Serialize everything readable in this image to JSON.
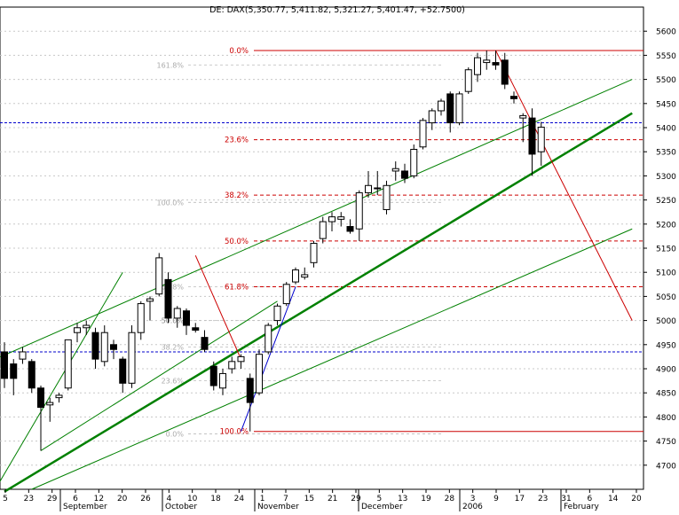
{
  "chart_data": {
    "type": "candlestick",
    "title": "DE: DAX(5,350.77, 5,411.82, 5,321.27, 5,401.47, +52.7500)",
    "ylim": [
      4650,
      5650
    ],
    "y_ticks": [
      4700,
      4750,
      4800,
      4850,
      4900,
      4950,
      5000,
      5050,
      5100,
      5150,
      5200,
      5250,
      5300,
      5350,
      5400,
      5450,
      5500,
      5550,
      5600
    ],
    "day_ticks": [
      "5",
      "23",
      "29",
      "6",
      "12",
      "20",
      "26",
      "4",
      "10",
      "18",
      "24",
      "1",
      "7",
      "15",
      "21",
      "29",
      "5",
      "13",
      "19",
      "28",
      "3",
      "9",
      "17",
      "23",
      "31",
      "6",
      "14",
      "20"
    ],
    "month_labels": [
      "September",
      "October",
      "November",
      "December",
      "2006",
      "February"
    ],
    "candles": [
      {
        "o": 4935,
        "h": 4955,
        "l": 4860,
        "c": 4880
      },
      {
        "o": 4910,
        "h": 4920,
        "l": 4845,
        "c": 4880
      },
      {
        "o": 4920,
        "h": 4945,
        "l": 4910,
        "c": 4935
      },
      {
        "o": 4915,
        "h": 4920,
        "l": 4850,
        "c": 4860
      },
      {
        "o": 4860,
        "h": 4865,
        "l": 4730,
        "c": 4820
      },
      {
        "o": 4825,
        "h": 4840,
        "l": 4790,
        "c": 4830
      },
      {
        "o": 4840,
        "h": 4850,
        "l": 4830,
        "c": 4845
      },
      {
        "o": 4860,
        "h": 4960,
        "l": 4855,
        "c": 4960
      },
      {
        "o": 4975,
        "h": 4995,
        "l": 4955,
        "c": 4985
      },
      {
        "o": 4985,
        "h": 5000,
        "l": 4970,
        "c": 4990
      },
      {
        "o": 4975,
        "h": 4985,
        "l": 4900,
        "c": 4920
      },
      {
        "o": 4915,
        "h": 4990,
        "l": 4905,
        "c": 4975
      },
      {
        "o": 4950,
        "h": 4960,
        "l": 4920,
        "c": 4940
      },
      {
        "o": 4920,
        "h": 4925,
        "l": 4850,
        "c": 4870
      },
      {
        "o": 4870,
        "h": 4990,
        "l": 4860,
        "c": 4975
      },
      {
        "o": 4975,
        "h": 5040,
        "l": 4960,
        "c": 5035
      },
      {
        "o": 5040,
        "h": 5050,
        "l": 5000,
        "c": 5045
      },
      {
        "o": 5055,
        "h": 5140,
        "l": 5050,
        "c": 5130
      },
      {
        "o": 5085,
        "h": 5100,
        "l": 4995,
        "c": 5005
      },
      {
        "o": 5005,
        "h": 5030,
        "l": 4985,
        "c": 5025
      },
      {
        "o": 5020,
        "h": 5025,
        "l": 4970,
        "c": 4990
      },
      {
        "o": 4985,
        "h": 4995,
        "l": 4975,
        "c": 4980
      },
      {
        "o": 4965,
        "h": 4980,
        "l": 4935,
        "c": 4940
      },
      {
        "o": 4905,
        "h": 4915,
        "l": 4855,
        "c": 4865
      },
      {
        "o": 4860,
        "h": 4900,
        "l": 4845,
        "c": 4890
      },
      {
        "o": 4900,
        "h": 4925,
        "l": 4890,
        "c": 4915
      },
      {
        "o": 4915,
        "h": 4930,
        "l": 4900,
        "c": 4925
      },
      {
        "o": 4880,
        "h": 4890,
        "l": 4770,
        "c": 4830
      },
      {
        "o": 4850,
        "h": 4940,
        "l": 4845,
        "c": 4930
      },
      {
        "o": 4935,
        "h": 4995,
        "l": 4930,
        "c": 4990
      },
      {
        "o": 5000,
        "h": 5035,
        "l": 4990,
        "c": 5030
      },
      {
        "o": 5035,
        "h": 5080,
        "l": 5030,
        "c": 5075
      },
      {
        "o": 5080,
        "h": 5110,
        "l": 5075,
        "c": 5105
      },
      {
        "o": 5090,
        "h": 5110,
        "l": 5085,
        "c": 5095
      },
      {
        "o": 5120,
        "h": 5165,
        "l": 5110,
        "c": 5160
      },
      {
        "o": 5170,
        "h": 5215,
        "l": 5160,
        "c": 5205
      },
      {
        "o": 5205,
        "h": 5225,
        "l": 5185,
        "c": 5215
      },
      {
        "o": 5210,
        "h": 5225,
        "l": 5195,
        "c": 5215
      },
      {
        "o": 5195,
        "h": 5210,
        "l": 5180,
        "c": 5185
      },
      {
        "o": 5190,
        "h": 5270,
        "l": 5165,
        "c": 5265
      },
      {
        "o": 5265,
        "h": 5310,
        "l": 5255,
        "c": 5280
      },
      {
        "o": 5275,
        "h": 5310,
        "l": 5260,
        "c": 5275
      },
      {
        "o": 5230,
        "h": 5290,
        "l": 5220,
        "c": 5280
      },
      {
        "o": 5310,
        "h": 5330,
        "l": 5290,
        "c": 5315
      },
      {
        "o": 5310,
        "h": 5325,
        "l": 5285,
        "c": 5295
      },
      {
        "o": 5300,
        "h": 5365,
        "l": 5295,
        "c": 5355
      },
      {
        "o": 5360,
        "h": 5420,
        "l": 5355,
        "c": 5415
      },
      {
        "o": 5410,
        "h": 5440,
        "l": 5395,
        "c": 5435
      },
      {
        "o": 5435,
        "h": 5460,
        "l": 5425,
        "c": 5455
      },
      {
        "o": 5470,
        "h": 5475,
        "l": 5390,
        "c": 5410
      },
      {
        "o": 5410,
        "h": 5475,
        "l": 5405,
        "c": 5470
      },
      {
        "o": 5475,
        "h": 5525,
        "l": 5470,
        "c": 5520
      },
      {
        "o": 5510,
        "h": 5555,
        "l": 5495,
        "c": 5545
      },
      {
        "o": 5535,
        "h": 5560,
        "l": 5520,
        "c": 5540
      },
      {
        "o": 5535,
        "h": 5560,
        "l": 5520,
        "c": 5530
      },
      {
        "o": 5540,
        "h": 5555,
        "l": 5480,
        "c": 5490
      },
      {
        "o": 5465,
        "h": 5475,
        "l": 5450,
        "c": 5460
      },
      {
        "o": 5420,
        "h": 5430,
        "l": 5370,
        "c": 5425
      },
      {
        "o": 5420,
        "h": 5440,
        "l": 5300,
        "c": 5345
      },
      {
        "o": 5350,
        "h": 5412,
        "l": 5321,
        "c": 5401
      }
    ],
    "fib_right": {
      "color": "#cc0000",
      "levels": [
        {
          "label": "0.0%",
          "value": 5560
        },
        {
          "label": "23.6%",
          "value": 5375
        },
        {
          "label": "38.2%",
          "value": 5260
        },
        {
          "label": "50.0%",
          "value": 5165
        },
        {
          "label": "61.8%",
          "value": 5070
        },
        {
          "label": "100.0%",
          "value": 4770
        }
      ]
    },
    "fib_left": {
      "color": "#aaaaaa",
      "levels": [
        {
          "label": "161.8%",
          "value": 5530
        },
        {
          "label": "100.0%",
          "value": 5245
        },
        {
          "label": "61.8%",
          "value": 5070
        },
        {
          "label": "50.0%",
          "value": 5000
        },
        {
          "label": "38.2%",
          "value": 4945
        },
        {
          "label": "23.6%",
          "value": 4875
        },
        {
          "label": "0.0%",
          "value": 4765
        }
      ]
    },
    "horizontal_lines": [
      {
        "value": 5410,
        "color": "#0000cc"
      },
      {
        "value": 4935,
        "color": "#0000cc"
      }
    ],
    "trend_lines": [
      {
        "color": "#008000",
        "width": 2.5,
        "from": [
          0,
          4645
        ],
        "to": [
          69,
          5430
        ]
      },
      {
        "color": "#008000",
        "width": 1,
        "from": [
          -1,
          4920
        ],
        "to": [
          69,
          5500
        ]
      },
      {
        "color": "#008000",
        "width": 1,
        "from": [
          3,
          4650
        ],
        "to": [
          69,
          5190
        ]
      },
      {
        "color": "#008000",
        "width": 1,
        "from": [
          -1,
          4650
        ],
        "to": [
          13,
          5100
        ]
      },
      {
        "color": "#008000",
        "width": 1,
        "from": [
          4,
          4730
        ],
        "to": [
          30,
          5040
        ]
      },
      {
        "color": "#cc0000",
        "width": 1,
        "from": [
          21,
          5135
        ],
        "to": [
          26,
          4920
        ]
      },
      {
        "color": "#cc0000",
        "width": 1,
        "from": [
          54,
          5560
        ],
        "to": [
          69,
          5000
        ]
      },
      {
        "color": "#0000cc",
        "width": 1,
        "from": [
          26,
          4770
        ],
        "to": [
          32,
          5070
        ]
      }
    ]
  }
}
